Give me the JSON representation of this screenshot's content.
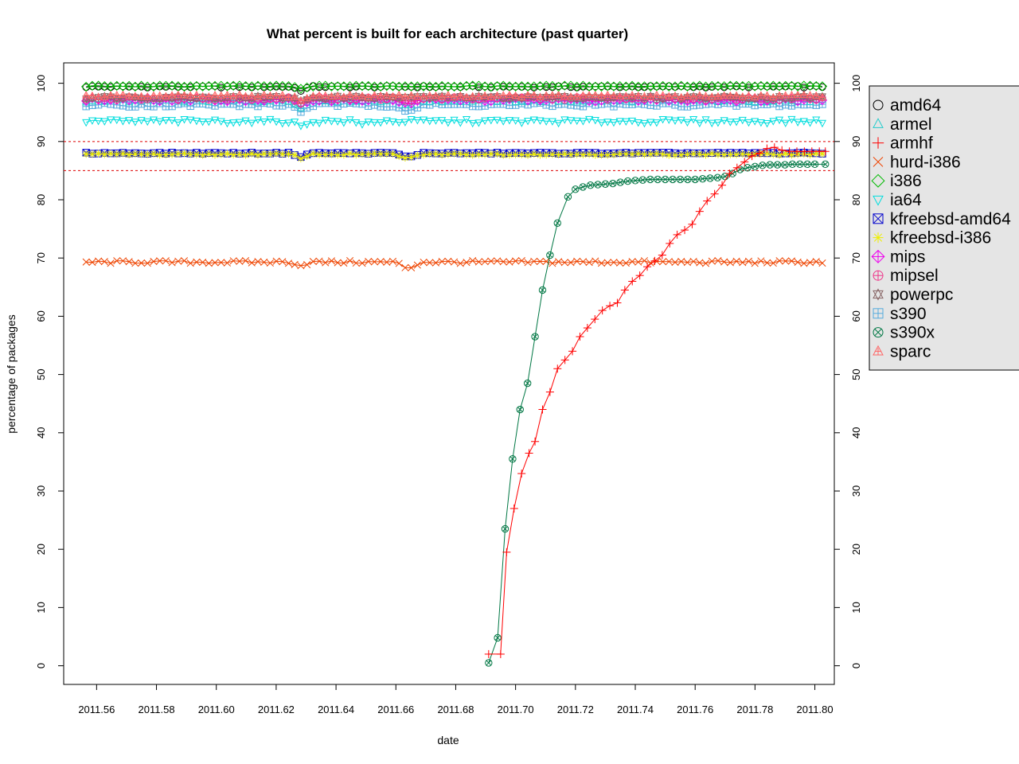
{
  "chart_data": {
    "type": "line",
    "title": "What percent is built for each architecture (past quarter)",
    "xlabel": "date",
    "ylabel": "percentage of packages",
    "xlim": [
      2011.549,
      2011.8065
    ],
    "ylim": [
      -3.2,
      103.5
    ],
    "x_ticks": [
      "2011.56",
      "2011.58",
      "2011.60",
      "2011.62",
      "2011.64",
      "2011.66",
      "2011.68",
      "2011.70",
      "2011.72",
      "2011.74",
      "2011.76",
      "2011.78",
      "2011.80"
    ],
    "y_ticks": [
      "0",
      "10",
      "20",
      "30",
      "40",
      "50",
      "60",
      "70",
      "80",
      "90",
      "100"
    ],
    "reference_lines": [
      90,
      85
    ],
    "reference_line_color": "#dd0000",
    "x_start": 2011.5565,
    "x_end": 2011.8035,
    "x_step": 0.00205,
    "legend_position": "right",
    "series": [
      {
        "name": "amd64",
        "color": "#000000",
        "symbol": "circle",
        "base": 99.4,
        "noise": 0.15,
        "dips": [
          [
            2011.628,
            0.6
          ]
        ]
      },
      {
        "name": "armel",
        "color": "#22cccc",
        "symbol": "triangle-up",
        "base": 97.0,
        "noise": 0.3,
        "dips": [
          [
            2011.628,
            1.0
          ],
          [
            2011.664,
            0.6
          ]
        ]
      },
      {
        "name": "armhf",
        "color": "#ff0000",
        "symbol": "plus",
        "points": [
          [
            2011.691,
            2.0
          ],
          [
            2011.695,
            2.0
          ],
          [
            2011.697,
            19.5
          ],
          [
            2011.6995,
            27.0
          ],
          [
            2011.702,
            33.0
          ],
          [
            2011.7045,
            36.5
          ],
          [
            2011.7065,
            38.5
          ],
          [
            2011.709,
            44.0
          ],
          [
            2011.7115,
            47.0
          ],
          [
            2011.714,
            51.0
          ],
          [
            2011.7165,
            52.5
          ],
          [
            2011.719,
            54.0
          ],
          [
            2011.7215,
            56.5
          ],
          [
            2011.724,
            58.0
          ],
          [
            2011.7265,
            59.5
          ],
          [
            2011.729,
            61.0
          ],
          [
            2011.7315,
            61.8
          ],
          [
            2011.734,
            62.3
          ],
          [
            2011.7365,
            64.5
          ],
          [
            2011.739,
            66.0
          ],
          [
            2011.7415,
            67.0
          ],
          [
            2011.744,
            68.5
          ],
          [
            2011.7465,
            69.5
          ],
          [
            2011.749,
            70.5
          ],
          [
            2011.7515,
            72.5
          ],
          [
            2011.754,
            74.0
          ],
          [
            2011.7565,
            74.8
          ],
          [
            2011.759,
            75.8
          ],
          [
            2011.7615,
            78.0
          ],
          [
            2011.764,
            79.8
          ],
          [
            2011.7665,
            81.0
          ],
          [
            2011.769,
            82.5
          ],
          [
            2011.7715,
            84.5
          ],
          [
            2011.774,
            85.5
          ],
          [
            2011.7765,
            86.5
          ],
          [
            2011.779,
            87.5
          ],
          [
            2011.7815,
            88.0
          ],
          [
            2011.784,
            88.8
          ],
          [
            2011.7865,
            89.0
          ],
          [
            2011.789,
            88.5
          ],
          [
            2011.7915,
            88.3
          ],
          [
            2011.794,
            88.3
          ],
          [
            2011.7965,
            88.3
          ],
          [
            2011.799,
            88.3
          ],
          [
            2011.8015,
            88.3
          ],
          [
            2011.8035,
            88.3
          ]
        ]
      },
      {
        "name": "hurd-i386",
        "color": "#ee4400",
        "symbol": "x",
        "base": 69.3,
        "noise": 0.25,
        "dips": [
          [
            2011.628,
            0.6
          ],
          [
            2011.664,
            0.9
          ]
        ]
      },
      {
        "name": "i386",
        "color": "#00bb00",
        "symbol": "diamond",
        "base": 99.5,
        "noise": 0.1,
        "dips": [
          [
            2011.628,
            0.5
          ]
        ]
      },
      {
        "name": "ia64",
        "color": "#00dddd",
        "symbol": "triangle-down",
        "base": 93.5,
        "noise": 0.35,
        "dips": [
          [
            2011.628,
            0.9
          ],
          [
            2011.649,
            0.6
          ]
        ]
      },
      {
        "name": "kfreebsd-amd64",
        "color": "#0000cc",
        "symbol": "square-x",
        "base": 88.0,
        "noise": 0.1,
        "dips": [
          [
            2011.628,
            0.6
          ],
          [
            2011.664,
            0.6
          ]
        ]
      },
      {
        "name": "kfreebsd-i386",
        "color": "#eeee00",
        "symbol": "asterisk",
        "base": 87.8,
        "noise": 0.15,
        "dips": [
          [
            2011.628,
            0.6
          ],
          [
            2011.664,
            0.6
          ]
        ]
      },
      {
        "name": "mips",
        "color": "#ee00ee",
        "symbol": "diamond-plus",
        "base": 97.2,
        "noise": 0.3,
        "dips": [
          [
            2011.628,
            0.8
          ],
          [
            2011.664,
            0.6
          ]
        ]
      },
      {
        "name": "mipsel",
        "color": "#ee3388",
        "symbol": "circle-plus",
        "base": 97.4,
        "noise": 0.3,
        "dips": [
          [
            2011.628,
            0.8
          ],
          [
            2011.664,
            0.6
          ]
        ]
      },
      {
        "name": "powerpc",
        "color": "#886666",
        "symbol": "star",
        "base": 97.6,
        "noise": 0.25,
        "dips": [
          [
            2011.628,
            0.7
          ]
        ]
      },
      {
        "name": "s390",
        "color": "#55aadd",
        "symbol": "square-plus",
        "base": 96.3,
        "noise": 0.35,
        "dips": [
          [
            2011.628,
            1.1
          ],
          [
            2011.664,
            0.8
          ]
        ]
      },
      {
        "name": "s390x",
        "color": "#007744",
        "symbol": "circle-x",
        "points": [
          [
            2011.691,
            0.5
          ],
          [
            2011.694,
            4.8
          ],
          [
            2011.6965,
            23.5
          ],
          [
            2011.699,
            35.5
          ],
          [
            2011.7015,
            44.0
          ],
          [
            2011.704,
            48.5
          ],
          [
            2011.7065,
            56.5
          ],
          [
            2011.709,
            64.5
          ],
          [
            2011.7115,
            70.5
          ],
          [
            2011.714,
            76.0
          ],
          [
            2011.7175,
            80.5
          ],
          [
            2011.72,
            81.8
          ],
          [
            2011.7225,
            82.2
          ],
          [
            2011.725,
            82.5
          ],
          [
            2011.7275,
            82.6
          ],
          [
            2011.73,
            82.7
          ],
          [
            2011.7325,
            82.8
          ],
          [
            2011.735,
            83.0
          ],
          [
            2011.7375,
            83.2
          ],
          [
            2011.74,
            83.3
          ],
          [
            2011.7425,
            83.4
          ],
          [
            2011.745,
            83.5
          ],
          [
            2011.7475,
            83.5
          ],
          [
            2011.75,
            83.5
          ],
          [
            2011.7525,
            83.5
          ],
          [
            2011.755,
            83.5
          ],
          [
            2011.7575,
            83.5
          ],
          [
            2011.76,
            83.5
          ],
          [
            2011.7625,
            83.6
          ],
          [
            2011.765,
            83.7
          ],
          [
            2011.7675,
            83.8
          ],
          [
            2011.77,
            84.0
          ],
          [
            2011.7725,
            84.5
          ],
          [
            2011.775,
            85.2
          ],
          [
            2011.7775,
            85.5
          ],
          [
            2011.78,
            85.7
          ],
          [
            2011.7825,
            85.9
          ],
          [
            2011.785,
            86.0
          ],
          [
            2011.7875,
            86.0
          ],
          [
            2011.79,
            86.0
          ],
          [
            2011.7925,
            86.1
          ],
          [
            2011.795,
            86.1
          ],
          [
            2011.7975,
            86.1
          ],
          [
            2011.8,
            86.1
          ],
          [
            2011.8035,
            86.1
          ]
        ]
      },
      {
        "name": "sparc",
        "color": "#ff6666",
        "symbol": "triangle-plus",
        "base": 97.8,
        "noise": 0.25,
        "dips": [
          [
            2011.628,
            0.7
          ]
        ]
      }
    ]
  }
}
